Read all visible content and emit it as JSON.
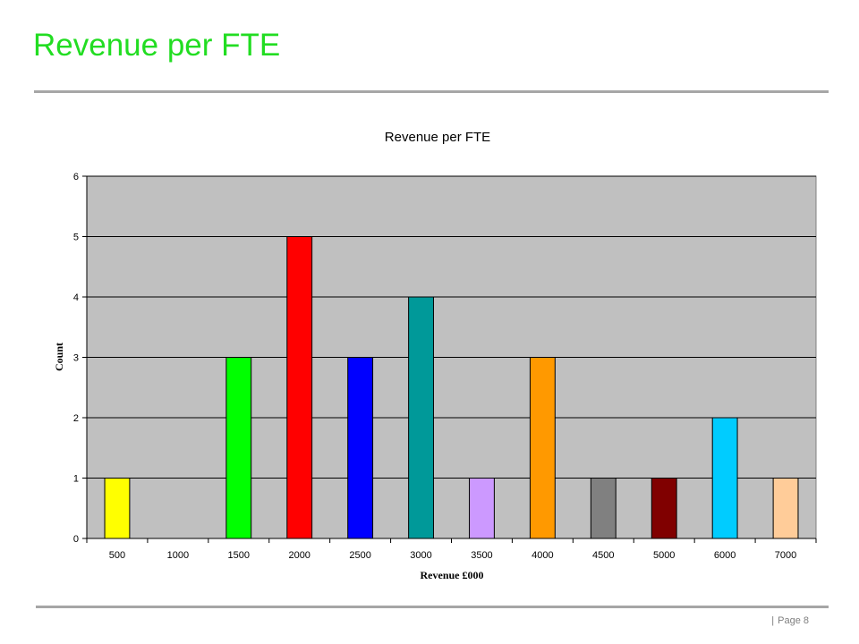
{
  "slide": {
    "title": "Revenue per FTE",
    "footer_separator": "|",
    "footer_page": "Page 8",
    "title_color": "#22dd22"
  },
  "chart_data": {
    "type": "bar",
    "title": "Revenue per FTE",
    "xlabel": "Revenue £000",
    "ylabel": "Count",
    "categories": [
      "500",
      "1000",
      "1500",
      "2000",
      "2500",
      "3000",
      "3500",
      "4000",
      "4500",
      "5000",
      "6000",
      "7000"
    ],
    "values": [
      1,
      0,
      3,
      5,
      3,
      4,
      1,
      3,
      1,
      1,
      2,
      1
    ],
    "colors": [
      "#ffff00",
      "#ffffff",
      "#00ff00",
      "#ff0000",
      "#0000ff",
      "#009999",
      "#cc99ff",
      "#ff9900",
      "#808080",
      "#800000",
      "#00ccff",
      "#ffcc99"
    ],
    "ylim": [
      0,
      6
    ],
    "yticks": [
      0,
      1,
      2,
      3,
      4,
      5,
      6
    ],
    "grid": true,
    "plot_background": "#c0c0c0",
    "legend": "none"
  }
}
